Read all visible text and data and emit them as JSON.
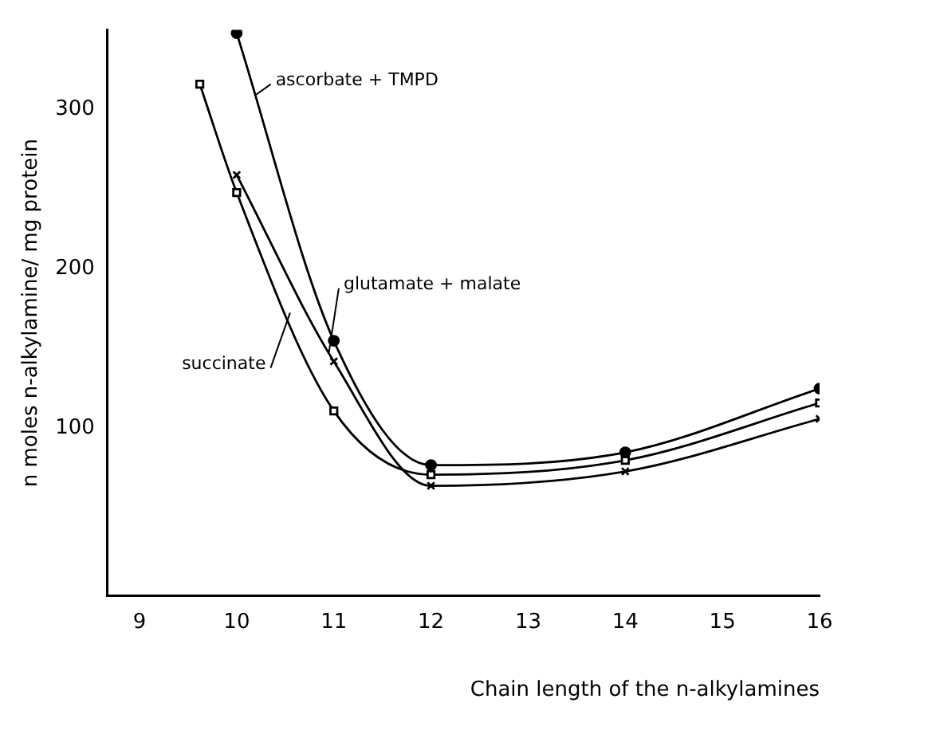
{
  "chart_data": {
    "type": "line",
    "xlabel": "Chain length of the n-alkylamines",
    "ylabel": "n moles n-alkylamine/ mg protein",
    "xlim": [
      8.67,
      16
    ],
    "xticks": [
      9,
      10,
      11,
      12,
      13,
      14,
      15,
      16
    ],
    "ylim": [
      -5,
      350
    ],
    "yticks": [
      100,
      200,
      300
    ],
    "grid": false,
    "line_style": "solid",
    "series": [
      {
        "name": "ascorbate + TMPD",
        "color": "#000000",
        "marker": "circle",
        "x": [
          10,
          11,
          12,
          14,
          16
        ],
        "values": [
          348,
          155,
          77,
          85,
          125
        ]
      },
      {
        "name": "glutamate + malate",
        "color": "#000000",
        "marker": "cross",
        "x": [
          10,
          11,
          12,
          14,
          16
        ],
        "values": [
          259,
          142,
          64,
          73,
          106
        ]
      },
      {
        "name": "succinate",
        "color": "#000000",
        "marker": "square",
        "x": [
          9.62,
          10,
          11,
          12,
          14,
          16
        ],
        "values": [
          316,
          248,
          111,
          71,
          80,
          116
        ]
      }
    ]
  }
}
